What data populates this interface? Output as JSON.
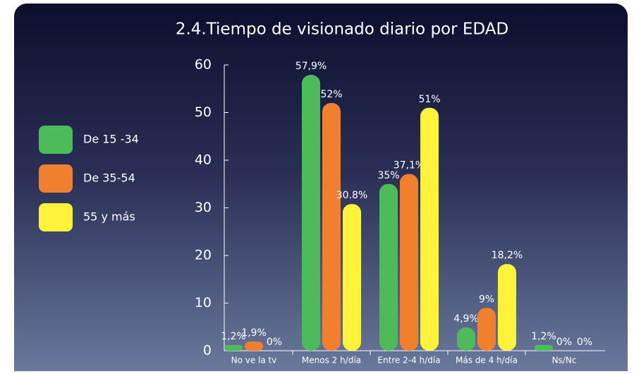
{
  "chart_data": {
    "type": "bar",
    "title": "2.4.Tiempo de visionado diario por EDAD",
    "categories": [
      "No ve la tv",
      "Menos 2 h/día",
      "Entre 2-4 h/día",
      "Más de 4 h/día",
      "Ns/Nc"
    ],
    "series": [
      {
        "name": "De 15 -34",
        "color": "#4dbb5a",
        "values": [
          1.2,
          57.9,
          35,
          4.9,
          1.2
        ],
        "value_labels": [
          "1,2%",
          "57,9%",
          "35%",
          "4,9%",
          "1,2%"
        ]
      },
      {
        "name": "De 35-54",
        "color": "#f07f2e",
        "values": [
          1.9,
          52,
          37.1,
          9,
          0
        ],
        "value_labels": [
          "1,9%",
          "52%",
          "37,1%",
          "9%",
          "0%"
        ]
      },
      {
        "name": "55 y más",
        "color": "#fff23a",
        "values": [
          0,
          30.8,
          51,
          18.2,
          0
        ],
        "value_labels": [
          "0%",
          "30.8%",
          "51%",
          "18,2%",
          "0%"
        ]
      }
    ],
    "ylim": [
      0,
      60
    ],
    "yticks": [
      0,
      10,
      20,
      30,
      40,
      50,
      60
    ],
    "legend": "left"
  }
}
